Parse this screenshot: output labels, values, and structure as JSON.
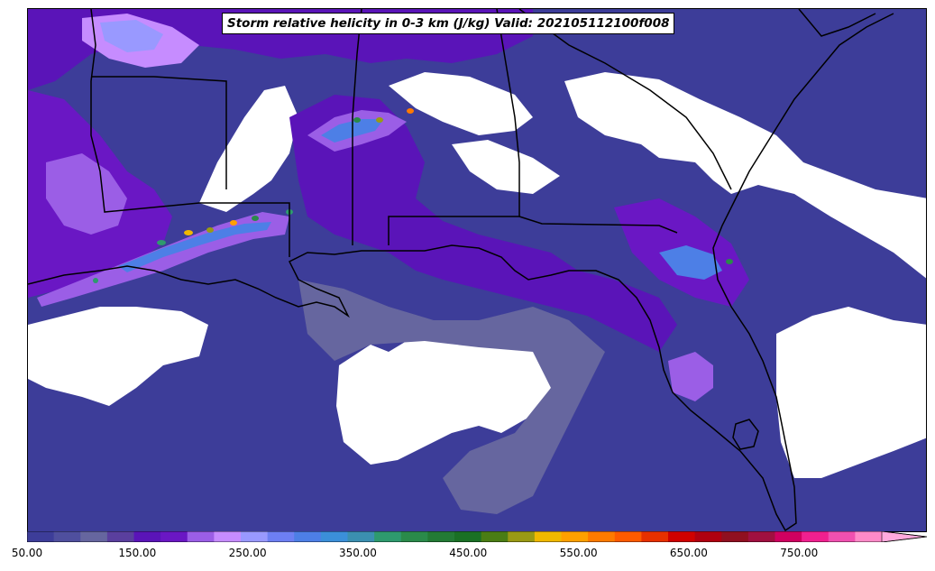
{
  "title": "Storm relative helicity in 0-3 km (J/kg) Valid: 202105112100f008",
  "colorbar": {
    "min": 50,
    "max": 825,
    "step": 25,
    "extend": "max",
    "tick_labels": [
      "50.00",
      "150.00",
      "250.00",
      "350.00",
      "450.00",
      "550.00",
      "650.00",
      "750.00"
    ],
    "tick_values": [
      50,
      150,
      250,
      350,
      450,
      550,
      650,
      750
    ],
    "colors": [
      "#3d3d99",
      "#4f4f9e",
      "#66669f",
      "#5a3f9e",
      "#5a14b8",
      "#6a17c4",
      "#9b5ee6",
      "#c68cff",
      "#9999ff",
      "#6d7ff3",
      "#4d7fe6",
      "#3b8fd9",
      "#3b8fb0",
      "#2e9a6e",
      "#2a8a4a",
      "#237a35",
      "#1a7025",
      "#4a7d14",
      "#9a9a14",
      "#f0b800",
      "#ffa000",
      "#ff7a00",
      "#ff5a00",
      "#e83000",
      "#d00000",
      "#b00010",
      "#901020",
      "#a01040",
      "#d00060",
      "#f0208f",
      "#f050b0",
      "#ff8ac8"
    ],
    "extend_color": "#ffaadd"
  },
  "legend_colors": {
    "outline": "#000000",
    "background": "#ffffff"
  }
}
